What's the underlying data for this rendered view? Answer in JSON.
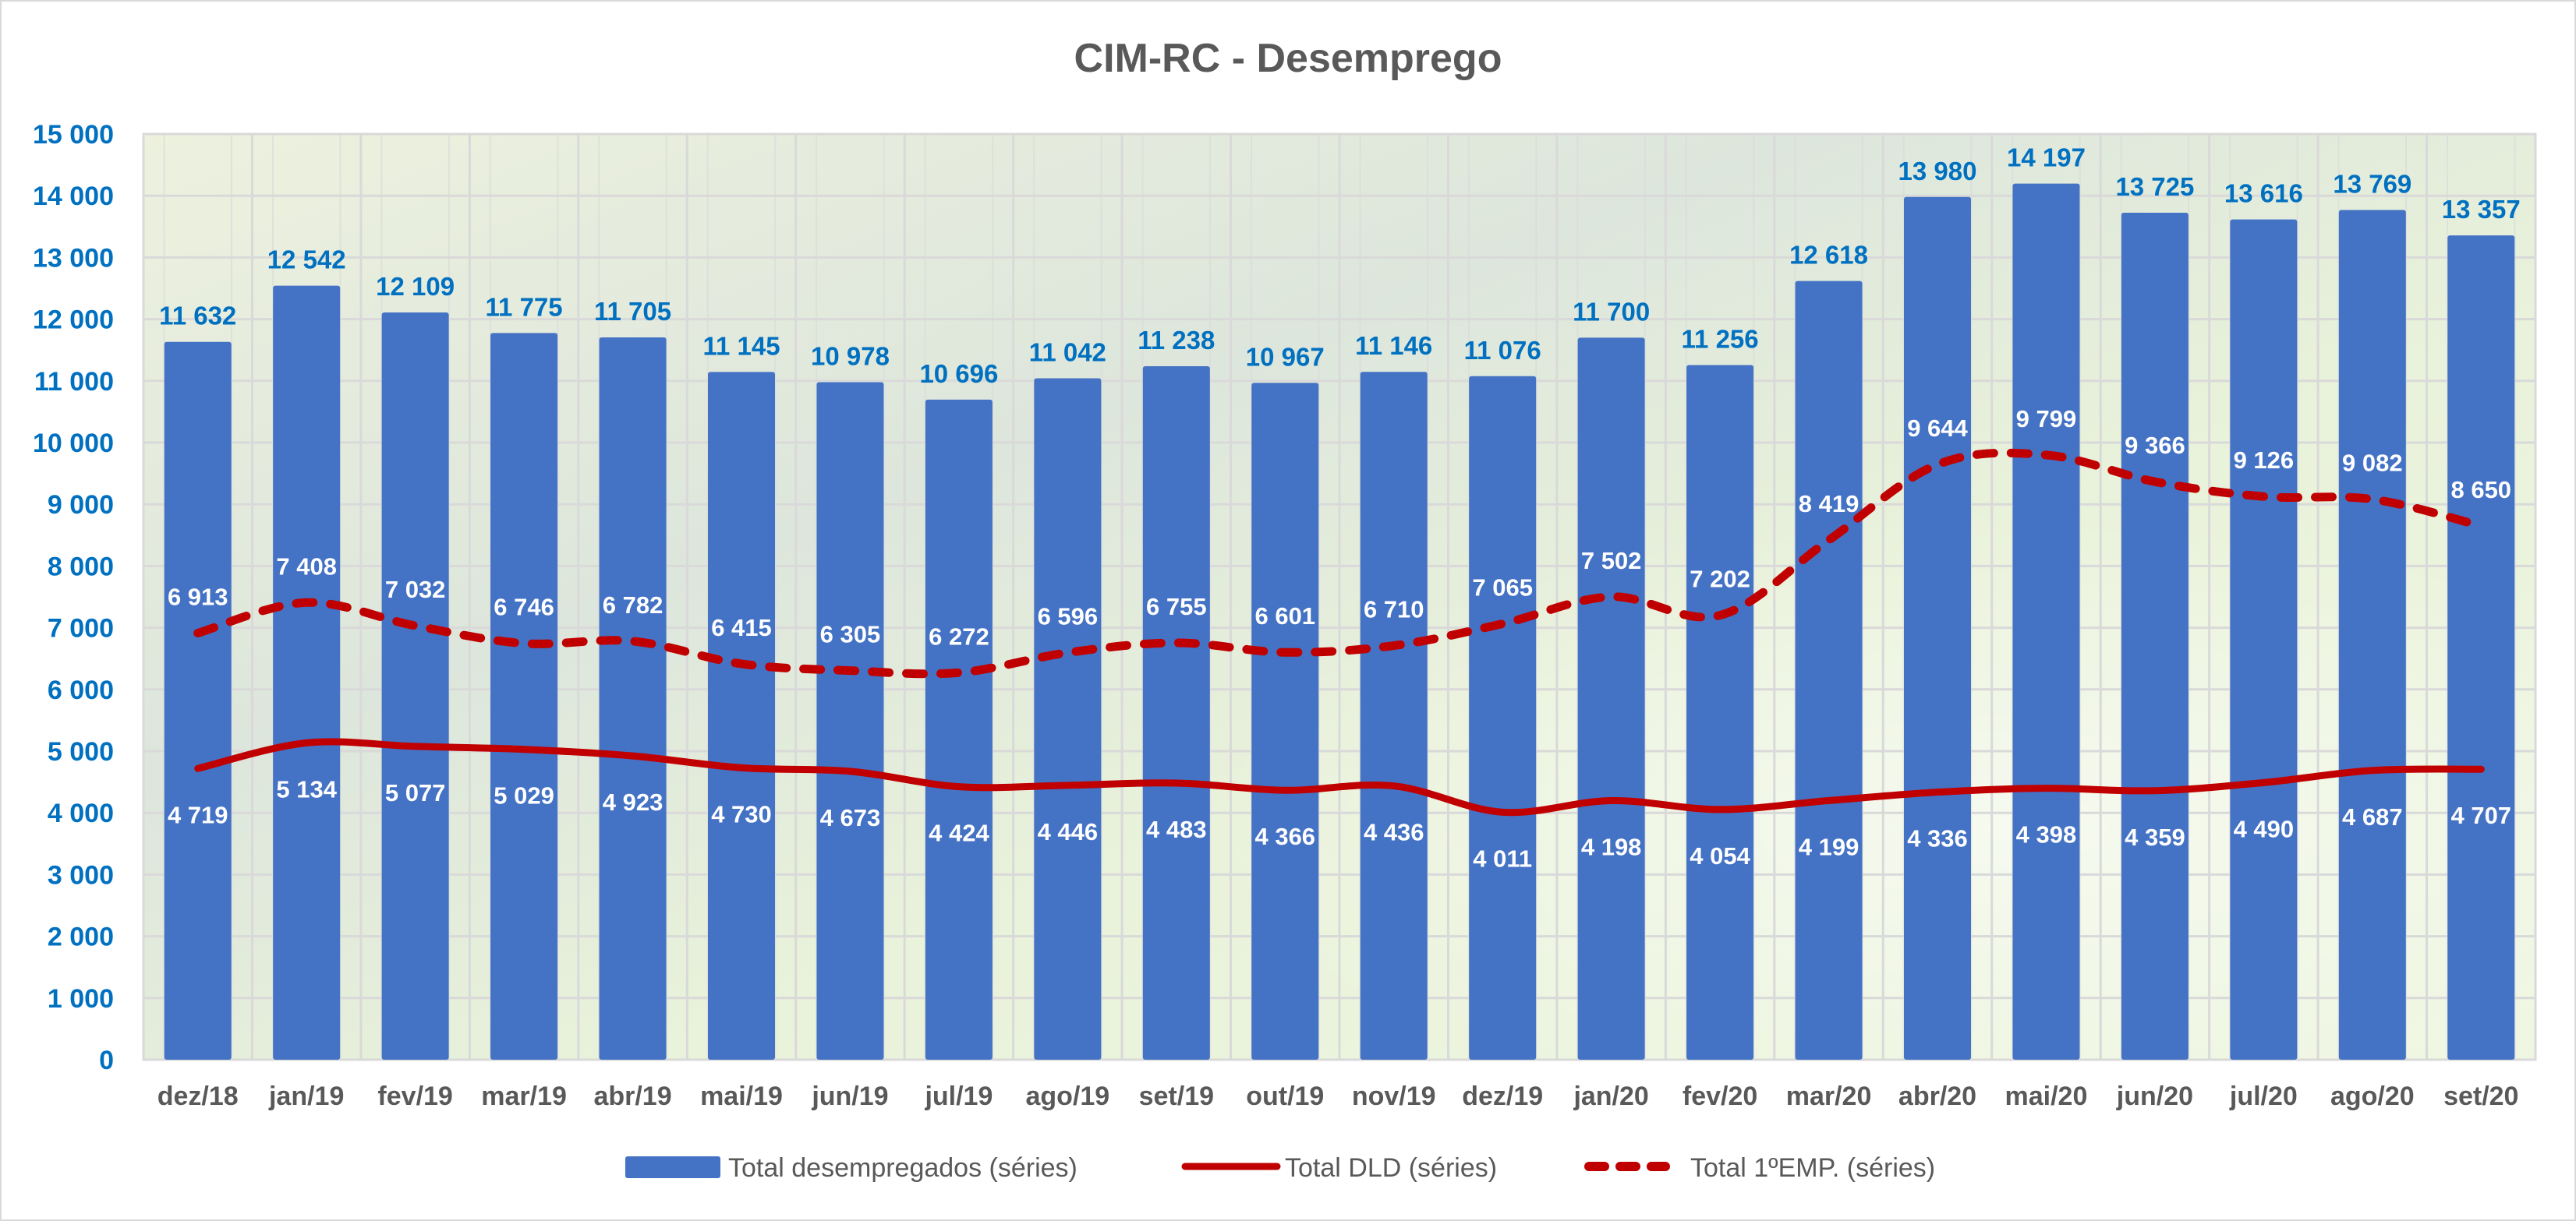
{
  "chart_data": {
    "type": "bar",
    "title": "CIM-RC - Desemprego",
    "xlabel": "",
    "ylabel": "",
    "ylim": [
      0,
      15000
    ],
    "yticks": [
      0,
      1000,
      2000,
      3000,
      4000,
      5000,
      6000,
      7000,
      8000,
      9000,
      10000,
      11000,
      12000,
      13000,
      14000,
      15000
    ],
    "ytick_labels": [
      "0",
      "1 000",
      "2 000",
      "3 000",
      "4 000",
      "5 000",
      "6 000",
      "7 000",
      "8 000",
      "9 000",
      "10 000",
      "11 000",
      "12 000",
      "13 000",
      "14 000",
      "15 000"
    ],
    "grid": true,
    "legend_position": "bottom",
    "categories": [
      "dez/18",
      "jan/19",
      "fev/19",
      "mar/19",
      "abr/19",
      "mai/19",
      "jun/19",
      "jul/19",
      "ago/19",
      "set/19",
      "out/19",
      "nov/19",
      "dez/19",
      "jan/20",
      "fev/20",
      "mar/20",
      "abr/20",
      "mai/20",
      "jun/20",
      "jul/20",
      "ago/20",
      "set/20"
    ],
    "series": [
      {
        "name": "Total desempregados (séries)",
        "type": "bar",
        "color": "#4472c4",
        "label_color": "#0070c0",
        "values": [
          11632,
          12542,
          12109,
          11775,
          11705,
          11145,
          10978,
          10696,
          11042,
          11238,
          10967,
          11146,
          11076,
          11700,
          11256,
          12618,
          13980,
          14197,
          13725,
          13616,
          13769,
          13357
        ],
        "labels": [
          "11 632",
          "12 542",
          "12 109",
          "11 775",
          "11 705",
          "11 145",
          "10 978",
          "10 696",
          "11 042",
          "11 238",
          "10 967",
          "11 146",
          "11 076",
          "11 700",
          "11 256",
          "12 618",
          "13 980",
          "14 197",
          "13 725",
          "13 616",
          "13 769",
          "13 357"
        ]
      },
      {
        "name": "Total DLD (séries)",
        "type": "line",
        "style": "solid",
        "color": "#c00000",
        "label_color": "#ffffff",
        "values": [
          4719,
          5134,
          5077,
          5029,
          4923,
          4730,
          4673,
          4424,
          4446,
          4483,
          4366,
          4436,
          4011,
          4198,
          4054,
          4199,
          4336,
          4398,
          4359,
          4490,
          4687,
          4707
        ],
        "labels": [
          "4 719",
          "5 134",
          "5 077",
          "5 029",
          "4 923",
          "4 730",
          "4 673",
          "4 424",
          "4 446",
          "4 483",
          "4 366",
          "4 436",
          "4 011",
          "4 198",
          "4 054",
          "4 199",
          "4 336",
          "4 398",
          "4 359",
          "4 490",
          "4 687",
          "4 707"
        ]
      },
      {
        "name": "Total 1ºEMP. (séries)",
        "type": "line",
        "style": "dashed",
        "color": "#c00000",
        "label_color": "#ffffff",
        "values": [
          6913,
          7408,
          7032,
          6746,
          6782,
          6415,
          6305,
          6272,
          6596,
          6755,
          6601,
          6710,
          7065,
          7502,
          7202,
          8419,
          9644,
          9799,
          9366,
          9126,
          9082,
          8650
        ],
        "labels": [
          "6 913",
          "7 408",
          "7 032",
          "6 746",
          "6 782",
          "6 415",
          "6 305",
          "6 272",
          "6 596",
          "6 755",
          "6 601",
          "6 710",
          "7 065",
          "7 502",
          "7 202",
          "8 419",
          "9 644",
          "9 799",
          "9 366",
          "9 126",
          "9 082",
          "8 650"
        ]
      }
    ],
    "legend": [
      {
        "label": "Total desempregados (séries)",
        "marker": "bar"
      },
      {
        "label": "Total DLD (séries)",
        "marker": "solid-line"
      },
      {
        "label": "Total 1ºEMP. (séries)",
        "marker": "dashed-line"
      }
    ],
    "colors": {
      "title": "#595959",
      "axis_tick": "#0070c0",
      "category_tick": "#595959",
      "gridline": "#d9d9d9",
      "plot_background": "#eaf3dc"
    }
  }
}
